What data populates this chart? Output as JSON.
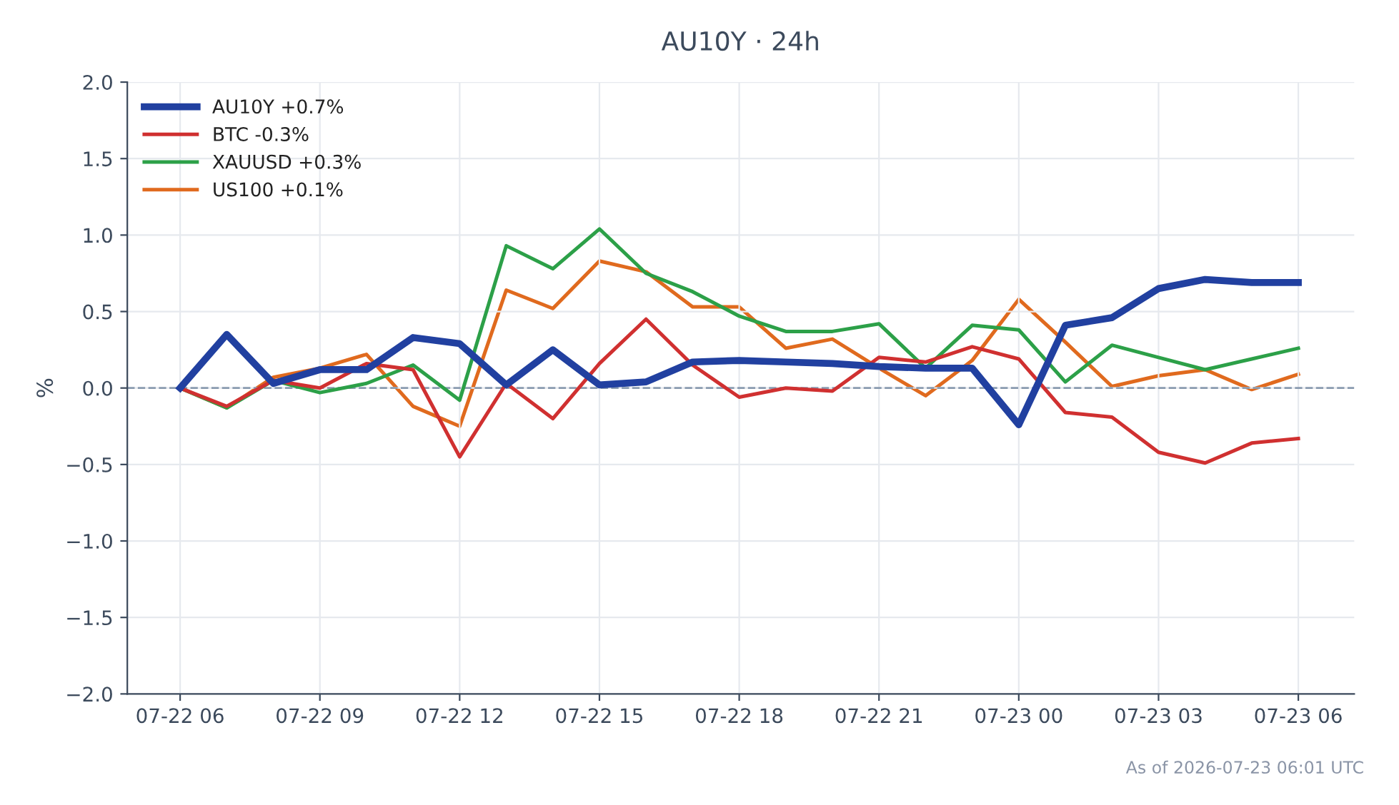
{
  "chart_data": {
    "type": "line",
    "title": "AU10Y · 24h",
    "ylabel": "%",
    "x": [
      "2026-07-22T06:00",
      "2026-07-22T07:00",
      "2026-07-22T08:00",
      "2026-07-22T09:00",
      "2026-07-22T10:00",
      "2026-07-22T11:00",
      "2026-07-22T12:00",
      "2026-07-22T13:00",
      "2026-07-22T14:00",
      "2026-07-22T15:00",
      "2026-07-22T16:00",
      "2026-07-22T17:00",
      "2026-07-22T18:00",
      "2026-07-22T19:00",
      "2026-07-22T20:00",
      "2026-07-22T21:00",
      "2026-07-22T22:00",
      "2026-07-22T23:00",
      "2026-07-23T00:00",
      "2026-07-23T01:00",
      "2026-07-23T02:00",
      "2026-07-23T03:00",
      "2026-07-23T04:00",
      "2026-07-23T05:00",
      "2026-07-23T06:00"
    ],
    "series": [
      {
        "name": "AU10Y +0.7%",
        "color": "#2140a0",
        "values": [
          0,
          0.35,
          0.03,
          0.12,
          0.12,
          0.33,
          0.29,
          0.02,
          0.25,
          0.02,
          0.04,
          0.17,
          0.18,
          0.17,
          0.16,
          0.14,
          0.13,
          0.13,
          -0.24,
          0.41,
          0.46,
          0.65,
          0.71,
          0.69,
          0.69
        ]
      },
      {
        "name": "BTC -0.3%",
        "color": "#d03030",
        "values": [
          0,
          -0.12,
          0.05,
          0.0,
          0.16,
          0.12,
          -0.45,
          0.03,
          -0.2,
          0.16,
          0.45,
          0.15,
          -0.06,
          0.0,
          -0.02,
          0.2,
          0.17,
          0.27,
          0.19,
          -0.16,
          -0.19,
          -0.42,
          -0.49,
          -0.36,
          -0.33
        ]
      },
      {
        "name": "XAUUSD +0.3%",
        "color": "#2ca048",
        "values": [
          0,
          -0.13,
          0.05,
          -0.03,
          0.03,
          0.15,
          -0.08,
          0.93,
          0.78,
          1.04,
          0.75,
          0.63,
          0.47,
          0.37,
          0.37,
          0.42,
          0.13,
          0.41,
          0.38,
          0.04,
          0.28,
          0.2,
          0.12,
          0.19,
          0.26
        ]
      },
      {
        "name": "US100 +0.1%",
        "color": "#e06a1e",
        "values": [
          0,
          -0.13,
          0.07,
          0.13,
          0.22,
          -0.12,
          -0.25,
          0.64,
          0.52,
          0.83,
          0.76,
          0.53,
          0.53,
          0.26,
          0.32,
          0.13,
          -0.05,
          0.18,
          0.58,
          0.3,
          0.01,
          0.08,
          0.12,
          -0.01,
          0.09
        ]
      }
    ],
    "xlim": [
      "2026-07-22T04:52",
      "2026-07-23T07:12"
    ],
    "xticks": [
      {
        "value": "2026-07-22T06:00",
        "label": "07-22 06"
      },
      {
        "value": "2026-07-22T09:00",
        "label": "07-22 09"
      },
      {
        "value": "2026-07-22T12:00",
        "label": "07-22 12"
      },
      {
        "value": "2026-07-22T15:00",
        "label": "07-22 15"
      },
      {
        "value": "2026-07-22T18:00",
        "label": "07-22 18"
      },
      {
        "value": "2026-07-22T21:00",
        "label": "07-22 21"
      },
      {
        "value": "2026-07-23T00:00",
        "label": "07-23 00"
      },
      {
        "value": "2026-07-23T03:00",
        "label": "07-23 03"
      },
      {
        "value": "2026-07-23T06:00",
        "label": "07-23 06"
      }
    ],
    "ylim": [
      -2.0,
      2.0
    ],
    "yticks": [
      {
        "value": -2,
        "label": "−2.0"
      },
      {
        "value": -1.5,
        "label": "−1.5"
      },
      {
        "value": -1,
        "label": "−1.0"
      },
      {
        "value": -0.5,
        "label": "−0.5"
      },
      {
        "value": 0,
        "label": "0.0"
      },
      {
        "value": 0.5,
        "label": "0.5"
      },
      {
        "value": 1,
        "label": "1.0"
      },
      {
        "value": 1.5,
        "label": "1.5"
      },
      {
        "value": 2,
        "label": "2.0"
      }
    ],
    "ref_lines": [
      {
        "axis": "y",
        "value": 0,
        "color": "#8a9bb0",
        "line_style": "dashed"
      }
    ],
    "grid": true,
    "legend": "top left",
    "marker": "none",
    "line_style": "solid",
    "annotations": [
      "As of 2026-07-23 06:01 UTC"
    ]
  }
}
